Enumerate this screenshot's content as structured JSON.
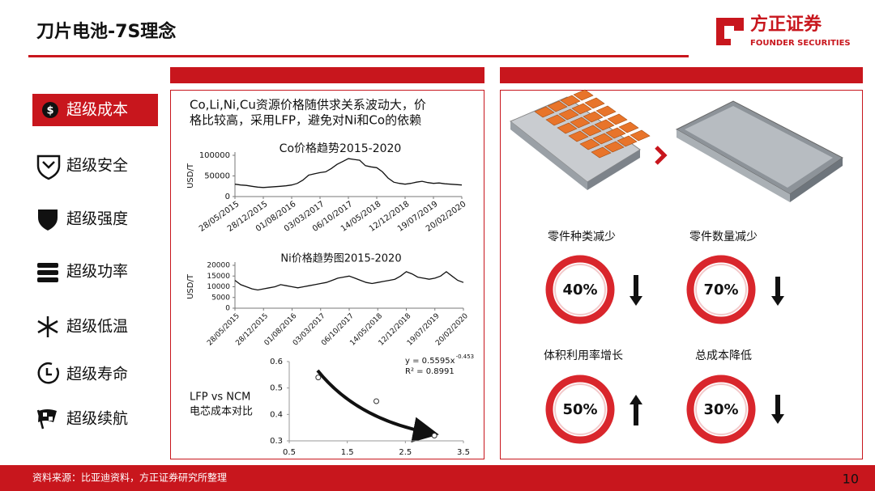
{
  "header": {
    "title": "刀片电池-7S理念",
    "logo_name": "方正证券",
    "logo_sub": "FOUNDER SECURITIES"
  },
  "sidebar": [
    "超级成本",
    "超级安全",
    "超级强度",
    "超级功率",
    "超级低温",
    "超级寿命",
    "超级续航"
  ],
  "intro_lines": [
    "Co,Li,Ni,Cu资源价格随供求关系波动大，价",
    "格比较高，采用LFP，避免对Ni和Co的依赖"
  ],
  "charts": [
    {
      "type": "line",
      "title": "Co价格趋势2015-2020",
      "y_label": "USD/T",
      "categories": [
        "28/05/2015",
        null,
        null,
        null,
        null,
        "28/12/2015",
        null,
        null,
        null,
        null,
        "01/08/2016",
        null,
        null,
        null,
        null,
        "03/03/2017",
        null,
        null,
        null,
        null,
        "06/10/2017",
        null,
        null,
        null,
        null,
        "14/05/2018",
        null,
        null,
        null,
        null,
        "12/12/2018",
        null,
        null,
        null,
        null,
        "19/07/2019",
        null,
        null,
        null,
        null,
        "20/02/2020"
      ],
      "series": [
        {
          "color": "#111111",
          "values": [
            30000,
            28000,
            27000,
            25000,
            23000,
            22000,
            23000,
            24000,
            25000,
            26000,
            28000,
            32000,
            40000,
            52000,
            55000,
            58000,
            60000,
            68000,
            78000,
            85000,
            92000,
            90000,
            88000,
            75000,
            72000,
            70000,
            60000,
            45000,
            35000,
            32000,
            30000,
            32000,
            35000,
            37000,
            34000,
            32000,
            33000,
            31000,
            30000,
            29000,
            28000
          ]
        }
      ],
      "ylim": [
        0,
        100000
      ],
      "yticks": [
        0,
        50000,
        100000
      ]
    },
    {
      "type": "line",
      "title": "Ni价格趋势图2015-2020",
      "y_label": "USD/T",
      "categories": [
        "28/05/2015",
        null,
        null,
        null,
        null,
        "28/12/2015",
        null,
        null,
        null,
        null,
        "01/08/2016",
        null,
        null,
        null,
        null,
        "03/03/2017",
        null,
        null,
        null,
        null,
        "06/10/2017",
        null,
        null,
        null,
        null,
        "14/05/2018",
        null,
        null,
        null,
        null,
        "12/12/2018",
        null,
        null,
        null,
        null,
        "19/07/2019",
        null,
        null,
        null,
        null,
        "20/02/2020"
      ],
      "series": [
        {
          "color": "#111111",
          "values": [
            13000,
            11000,
            10000,
            9000,
            8500,
            9000,
            9500,
            10000,
            11000,
            10500,
            10000,
            9500,
            10000,
            10500,
            11000,
            11500,
            12000,
            13000,
            14000,
            14500,
            15000,
            14000,
            13000,
            12000,
            11500,
            12000,
            12500,
            13000,
            13500,
            15000,
            17000,
            16000,
            14500,
            14000,
            13500,
            14000,
            15000,
            17000,
            15000,
            13000,
            12000
          ]
        }
      ],
      "ylim": [
        0,
        20000
      ],
      "yticks": [
        0,
        5000,
        10000,
        15000,
        20000
      ]
    },
    {
      "type": "scatter",
      "title_lines": [
        "LFP vs NCM",
        "电芯成本对比"
      ],
      "equation": "y = 0.5595x",
      "equation_exponent": "-0.453",
      "r_squared": "R² = 0.8991",
      "x": [
        1,
        2,
        3
      ],
      "series": [
        {
          "color": "#333333",
          "values": [
            0.54,
            0.45,
            0.32
          ]
        }
      ],
      "xlim": [
        0.5,
        3.5
      ],
      "xticks": [
        0.5,
        1.5,
        2.5,
        3.5
      ],
      "ylim": [
        0.3,
        0.6
      ],
      "yticks": [
        0.3,
        0.4,
        0.5,
        0.6
      ]
    }
  ],
  "metrics": [
    {
      "label": "零件种类减少",
      "value": "40%"
    },
    {
      "label": "零件数量减少",
      "value": "70%"
    },
    {
      "label": "体积利用率增长",
      "value": "50%"
    },
    {
      "label": "总成本降低",
      "value": "30%"
    }
  ],
  "footer": {
    "source": "资料来源：比亚迪资料，方正证券研究所整理",
    "page": "10"
  }
}
